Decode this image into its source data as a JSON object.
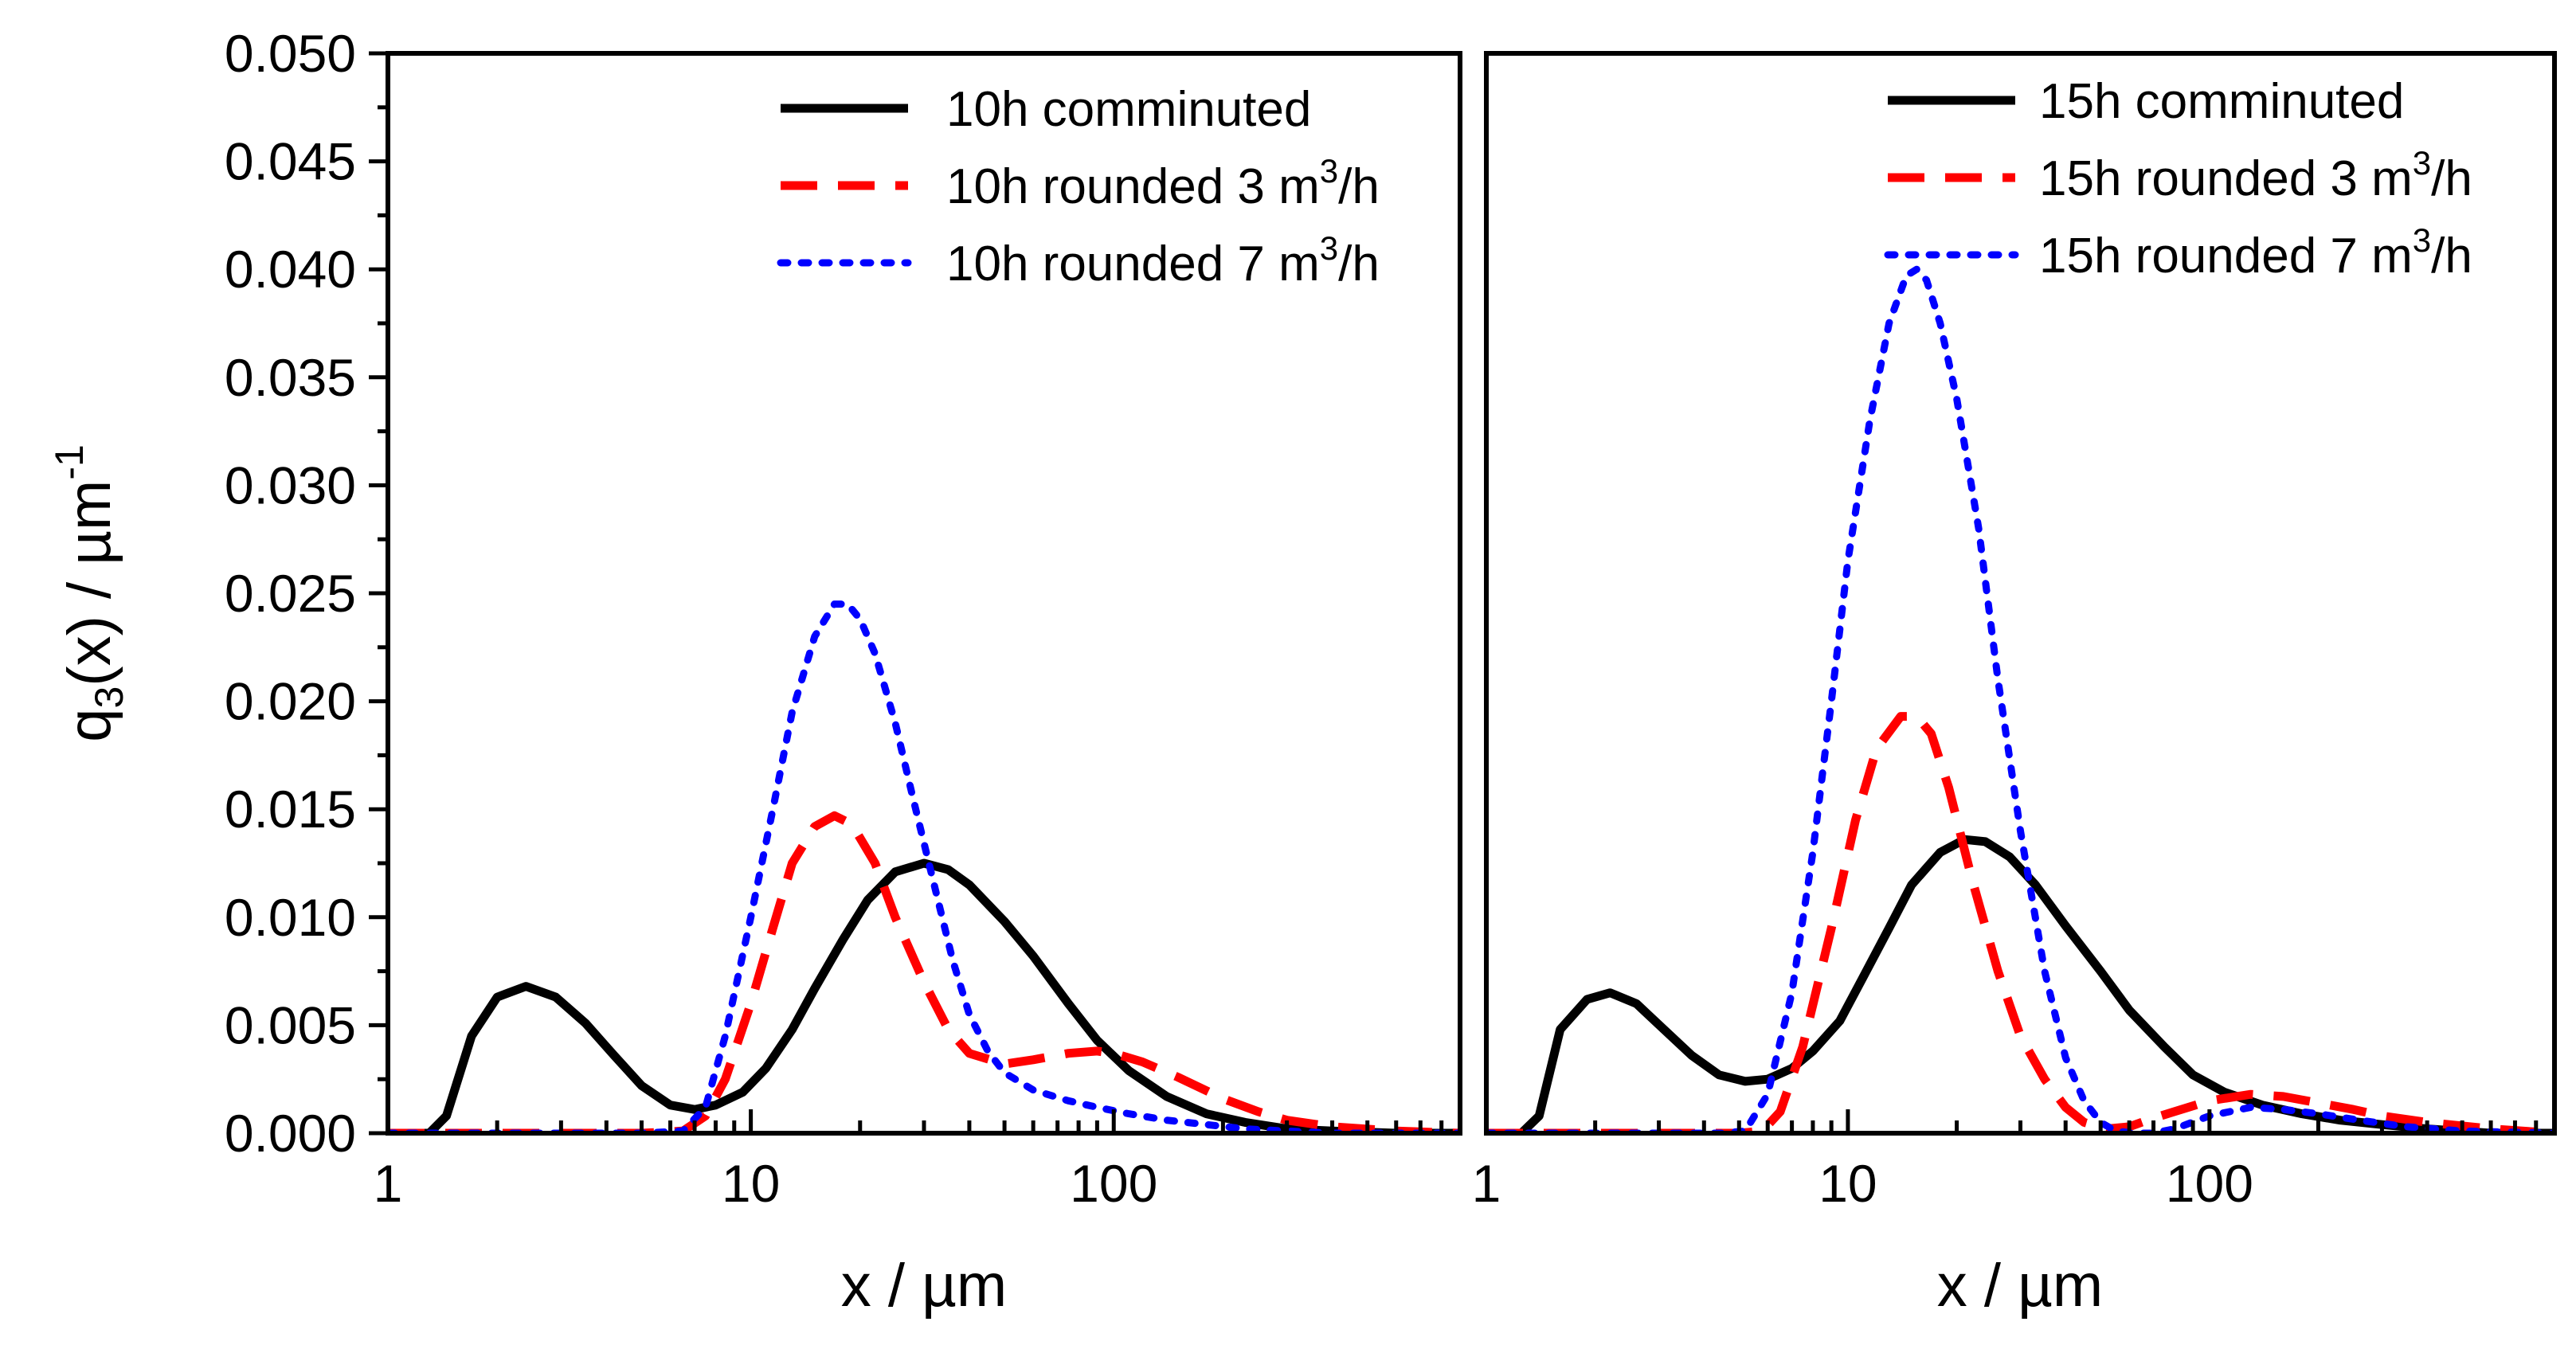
{
  "colors": {
    "comminuted": "#000000",
    "rounded_3": "#ff0000",
    "rounded_7": "#0000ff"
  },
  "chart_data": [
    {
      "type": "line",
      "panel": "left",
      "xscale": "log",
      "xlim": [
        1,
        900
      ],
      "ylim": [
        0,
        0.05
      ],
      "xlabel": "x / µm",
      "ylabel": "q3(x) / µm-1",
      "ylabel_parts": {
        "main": "q",
        "sub": "3",
        "rest": "(x) / µm",
        "sup": "-1"
      },
      "xticks": [
        1,
        10,
        100
      ],
      "xtick_labels": [
        "1",
        "10",
        "100"
      ],
      "yticks": [
        0,
        0.005,
        0.01,
        0.015,
        0.02,
        0.025,
        0.03,
        0.035,
        0.04,
        0.045,
        0.05
      ],
      "ytick_labels": [
        "0.000",
        "0.005",
        "0.010",
        "0.015",
        "0.020",
        "0.025",
        "0.030",
        "0.035",
        "0.040",
        "0.045",
        "0.050"
      ],
      "legend_position": "top-right",
      "series": [
        {
          "name": "10h comminuted",
          "legend": {
            "text": "10h comminuted",
            "sup": "",
            "tail": ""
          },
          "style": "solid",
          "x": [
            1,
            1.3,
            1.45,
            1.7,
            2.0,
            2.4,
            2.9,
            3.5,
            4.2,
            5.0,
            6.0,
            7.0,
            8.0,
            9.5,
            11,
            13,
            15,
            18,
            21,
            25,
            30,
            35,
            40,
            50,
            60,
            75,
            90,
            110,
            140,
            180,
            230,
            300,
            400,
            600,
            900
          ],
          "y": [
            0,
            0,
            0.0008,
            0.0045,
            0.0063,
            0.0068,
            0.0063,
            0.0051,
            0.0036,
            0.0022,
            0.0013,
            0.0011,
            0.0013,
            0.0019,
            0.003,
            0.0048,
            0.0067,
            0.009,
            0.0108,
            0.0121,
            0.0125,
            0.0122,
            0.0115,
            0.0098,
            0.0082,
            0.006,
            0.0043,
            0.0029,
            0.0017,
            0.0009,
            0.0005,
            0.0002,
            0.0001,
            0,
            0
          ]
        },
        {
          "name": "10h rounded 3 m3/h",
          "legend": {
            "text": "10h rounded 3 m",
            "sup": "3",
            "tail": "/h"
          },
          "style": "dashed",
          "x": [
            1,
            3,
            5,
            6.5,
            7.5,
            8.5,
            10,
            11.5,
            13,
            15,
            17,
            19,
            22,
            25,
            30,
            35,
            40,
            50,
            60,
            75,
            90,
            100,
            120,
            150,
            200,
            250,
            300,
            400,
            600,
            900
          ],
          "y": [
            0,
            0,
            0,
            0.0001,
            0.0008,
            0.0025,
            0.006,
            0.0095,
            0.0125,
            0.0142,
            0.0147,
            0.0143,
            0.0125,
            0.01,
            0.007,
            0.0048,
            0.0037,
            0.0032,
            0.0034,
            0.0037,
            0.0038,
            0.0037,
            0.0033,
            0.0026,
            0.0016,
            0.001,
            0.0006,
            0.0003,
            0.0001,
            0
          ]
        },
        {
          "name": "10h rounded 7 m3/h",
          "legend": {
            "text": "10h rounded 7 m",
            "sup": "3",
            "tail": "/h"
          },
          "style": "dotted",
          "x": [
            1,
            3,
            5,
            6.5,
            7.5,
            8.5,
            10,
            11.5,
            13,
            15,
            17,
            18.5,
            20,
            22,
            25,
            28,
            32,
            36,
            40,
            45,
            50,
            60,
            75,
            90,
            110,
            140,
            180,
            230,
            300,
            400,
            600,
            900
          ],
          "y": [
            0,
            0,
            0,
            0.0001,
            0.0012,
            0.0045,
            0.01,
            0.015,
            0.0195,
            0.023,
            0.0245,
            0.0245,
            0.0238,
            0.0222,
            0.019,
            0.0155,
            0.0115,
            0.008,
            0.0055,
            0.0038,
            0.0028,
            0.002,
            0.0015,
            0.0012,
            0.0009,
            0.0006,
            0.0004,
            0.0002,
            0.0001,
            0,
            0,
            0
          ]
        }
      ]
    },
    {
      "type": "line",
      "panel": "right",
      "xscale": "log",
      "xlim": [
        1,
        900
      ],
      "ylim": [
        0,
        0.05
      ],
      "xlabel": "x / µm",
      "xticks": [
        1,
        10,
        100
      ],
      "xtick_labels": [
        "1",
        "10",
        "100"
      ],
      "legend_position": "top-right",
      "series": [
        {
          "name": "15h comminuted",
          "legend": {
            "text": "15h comminuted",
            "sup": "",
            "tail": ""
          },
          "style": "solid",
          "x": [
            1,
            1.25,
            1.4,
            1.6,
            1.9,
            2.2,
            2.6,
            3.1,
            3.7,
            4.4,
            5.2,
            6.0,
            7.0,
            8.0,
            9.5,
            11,
            13,
            15,
            18,
            21,
            24,
            28,
            33,
            40,
            50,
            60,
            75,
            90,
            110,
            140,
            180,
            230,
            300,
            400,
            600,
            900
          ],
          "y": [
            0,
            0,
            0.0008,
            0.0048,
            0.0062,
            0.0065,
            0.006,
            0.0048,
            0.0036,
            0.0027,
            0.0024,
            0.0025,
            0.003,
            0.0038,
            0.0052,
            0.0072,
            0.0095,
            0.0115,
            0.013,
            0.0136,
            0.0135,
            0.0128,
            0.0115,
            0.0096,
            0.0075,
            0.0057,
            0.004,
            0.0027,
            0.0019,
            0.0013,
            0.0009,
            0.0006,
            0.0004,
            0.0002,
            0,
            0
          ]
        },
        {
          "name": "15h rounded 3 m3/h",
          "legend": {
            "text": "15h rounded 3 m",
            "sup": "3",
            "tail": "/h"
          },
          "style": "dashed",
          "x": [
            1,
            3,
            5,
            5.8,
            6.5,
            7.5,
            9,
            10.5,
            12,
            14,
            15.5,
            17,
            19,
            22,
            26,
            30,
            35,
            40,
            45,
            52,
            60,
            70,
            80,
            100,
            130,
            160,
            200,
            250,
            300,
            400,
            600,
            900
          ],
          "y": [
            0,
            0,
            0,
            0.0001,
            0.001,
            0.004,
            0.0095,
            0.0145,
            0.0178,
            0.0193,
            0.0193,
            0.0185,
            0.016,
            0.0118,
            0.0075,
            0.0045,
            0.0025,
            0.0012,
            0.0005,
            0.0002,
            0.0003,
            0.0007,
            0.001,
            0.0015,
            0.0018,
            0.0017,
            0.0014,
            0.0011,
            0.0008,
            0.0005,
            0.0002,
            0
          ]
        },
        {
          "name": "15h rounded 7 m3/h",
          "legend": {
            "text": "15h rounded 7 m",
            "sup": "3",
            "tail": "/h"
          },
          "style": "dotted",
          "x": [
            1,
            3,
            4.5,
            5.2,
            6.0,
            7.0,
            8.0,
            9.0,
            10,
            11.5,
            13,
            14.5,
            15.5,
            16.5,
            18,
            20,
            23,
            26,
            30,
            35,
            40,
            45,
            50,
            55,
            62,
            70,
            80,
            100,
            130,
            160,
            200,
            260,
            350,
            500,
            900
          ],
          "y": [
            0,
            0,
            0,
            0.0001,
            0.0018,
            0.0065,
            0.013,
            0.02,
            0.0265,
            0.033,
            0.0375,
            0.0397,
            0.04,
            0.0395,
            0.0375,
            0.034,
            0.028,
            0.021,
            0.014,
            0.0075,
            0.0035,
            0.0015,
            0.0005,
            0.0001,
            0,
            0,
            0.0002,
            0.0008,
            0.0012,
            0.0011,
            0.0009,
            0.0006,
            0.0003,
            0.0001,
            0
          ]
        }
      ]
    }
  ]
}
